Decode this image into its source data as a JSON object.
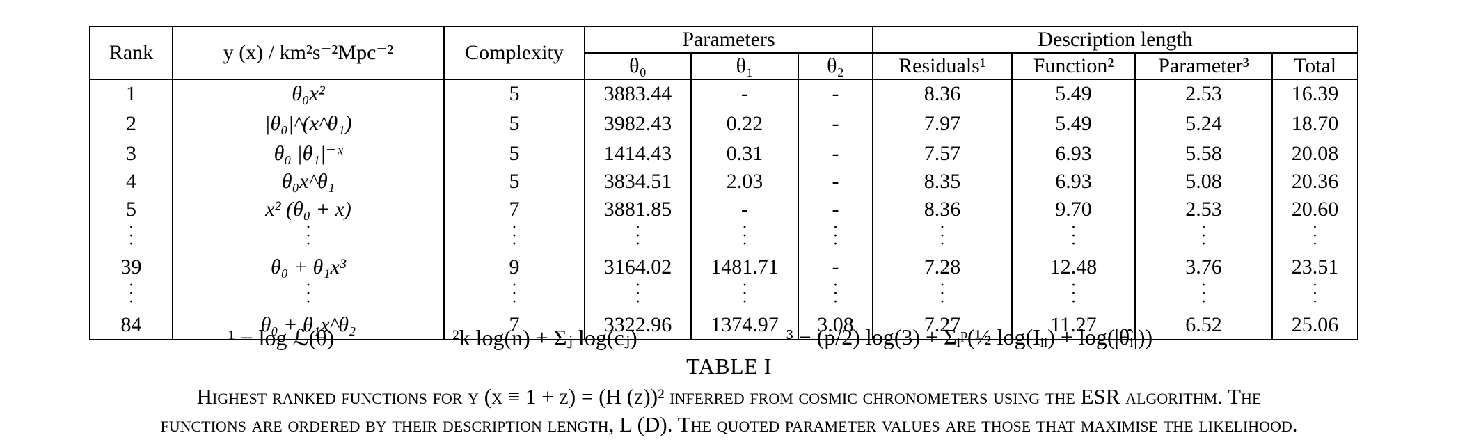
{
  "table": {
    "headers": {
      "rank": "Rank",
      "y_label": "y (x)  / km²s⁻²Mpc⁻²",
      "complexity": "Complexity",
      "parameters": "Parameters",
      "description_length": "Description length",
      "theta0": "θ₀",
      "theta1": "θ₁",
      "theta2": "θ₂",
      "residuals": "Residuals¹",
      "function": "Function²",
      "parameter": "Parameter³",
      "total": "Total"
    },
    "rows": [
      {
        "rank": "1",
        "function": "θ₀x²",
        "complexity": "5",
        "t0": "3883.44",
        "t1": "-",
        "t2": "-",
        "residuals": "8.36",
        "func": "5.49",
        "param": "2.53",
        "total": "16.39"
      },
      {
        "rank": "2",
        "function": "|θ₀|^(x^θ₁)",
        "complexity": "5",
        "t0": "3982.43",
        "t1": "0.22",
        "t2": "-",
        "residuals": "7.97",
        "func": "5.49",
        "param": "5.24",
        "total": "18.70"
      },
      {
        "rank": "3",
        "function": "θ₀ |θ₁|⁻ˣ",
        "complexity": "5",
        "t0": "1414.43",
        "t1": "0.31",
        "t2": "-",
        "residuals": "7.57",
        "func": "6.93",
        "param": "5.58",
        "total": "20.08"
      },
      {
        "rank": "4",
        "function": "θ₀x^θ₁",
        "complexity": "5",
        "t0": "3834.51",
        "t1": "2.03",
        "t2": "-",
        "residuals": "8.35",
        "func": "6.93",
        "param": "5.08",
        "total": "20.36"
      },
      {
        "rank": "5",
        "function": "x² (θ₀ + x)",
        "complexity": "7",
        "t0": "3881.85",
        "t1": "-",
        "t2": "-",
        "residuals": "8.36",
        "func": "9.70",
        "param": "2.53",
        "total": "20.60"
      },
      {
        "rank": "39",
        "function": "θ₀ + θ₁x³",
        "complexity": "9",
        "t0": "3164.02",
        "t1": "1481.71",
        "t2": "-",
        "residuals": "7.28",
        "func": "12.48",
        "param": "3.76",
        "total": "23.51"
      },
      {
        "rank": "84",
        "function": "θ₀ + θ₁x^θ₂",
        "complexity": "7",
        "t0": "3322.96",
        "t1": "1374.97",
        "t2": "3.08",
        "residuals": "7.27",
        "func": "11.27",
        "param": "6.52",
        "total": "25.06"
      }
    ]
  },
  "footnotes": {
    "note1": "¹ − log ℒ(θ̂)",
    "note2": "²k log(n) + Σⱼ log(cⱼ)",
    "note3": "³ − (p/2) log(3) + Σᵢᵖ(½ log(Iᵢᵢ) + log(|θ̂ᵢ|))"
  },
  "caption": {
    "title": "TABLE I",
    "line1": "Highest ranked functions for y (x ≡ 1 + z) = (H (z))² inferred from cosmic chronometers using the ESR algorithm. The",
    "line2": "functions are ordered by their description length, L (D). The quoted parameter values are those that maximise the likelihood."
  }
}
